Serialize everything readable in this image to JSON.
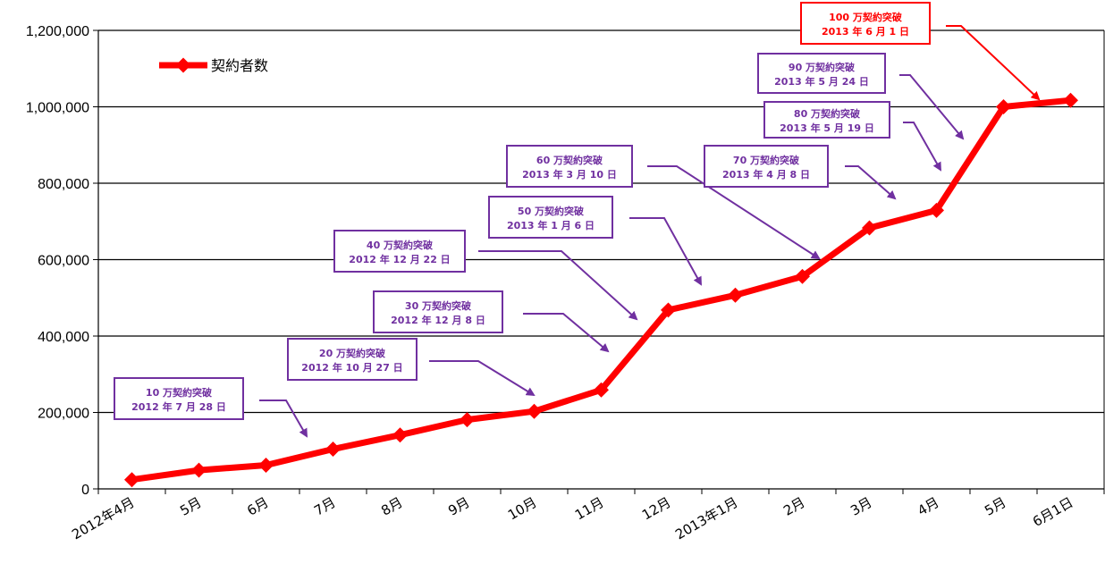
{
  "chart_data": {
    "type": "line",
    "categories": [
      "2012年4月",
      "5月",
      "6月",
      "7月",
      "8月",
      "9月",
      "10月",
      "11月",
      "12月",
      "2013年1月",
      "2月",
      "3月",
      "4月",
      "5月",
      "6月1日"
    ],
    "series": [
      {
        "name": "契約者数",
        "color": "#ff0000",
        "values": [
          24000,
          49000,
          62000,
          104000,
          141000,
          181000,
          203000,
          259000,
          468000,
          507000,
          556000,
          683000,
          729000,
          1000000,
          1017000
        ]
      }
    ],
    "ylim": [
      0,
      1200000
    ],
    "yticks": [
      0,
      200000,
      400000,
      600000,
      800000,
      1000000,
      1200000
    ],
    "ytick_labels": [
      "0",
      "200,000",
      "400,000",
      "600,000",
      "800,000",
      "1,000,000",
      "1,200,000"
    ],
    "grid": true,
    "legend": "top-left",
    "annotations": [
      {
        "line1": "10 万契約突破",
        "line2": "2012 年 7 月 28 日",
        "color": "#7030a0"
      },
      {
        "line1": "20 万契約突破",
        "line2": "2012 年 10 月 27 日",
        "color": "#7030a0"
      },
      {
        "line1": "30 万契約突破",
        "line2": "2012 年 12 月 8 日",
        "color": "#7030a0"
      },
      {
        "line1": "40 万契約突破",
        "line2": "2012 年 12 月 22 日",
        "color": "#7030a0"
      },
      {
        "line1": "50 万契約突破",
        "line2": "2013 年 1 月 6 日",
        "color": "#7030a0"
      },
      {
        "line1": "60 万契約突破",
        "line2": "2013 年 3 月 10 日",
        "color": "#7030a0"
      },
      {
        "line1": "70 万契約突破",
        "line2": "2013 年 4 月 8 日",
        "color": "#7030a0"
      },
      {
        "line1": "80 万契約突破",
        "line2": "2013 年 5 月 19 日",
        "color": "#7030a0"
      },
      {
        "line1": "90 万契約突破",
        "line2": "2013 年 5 月 24 日",
        "color": "#7030a0"
      },
      {
        "line1": "100 万契約突破",
        "line2": "2013 年 6 月 1 日",
        "color": "#ff0000"
      }
    ]
  }
}
